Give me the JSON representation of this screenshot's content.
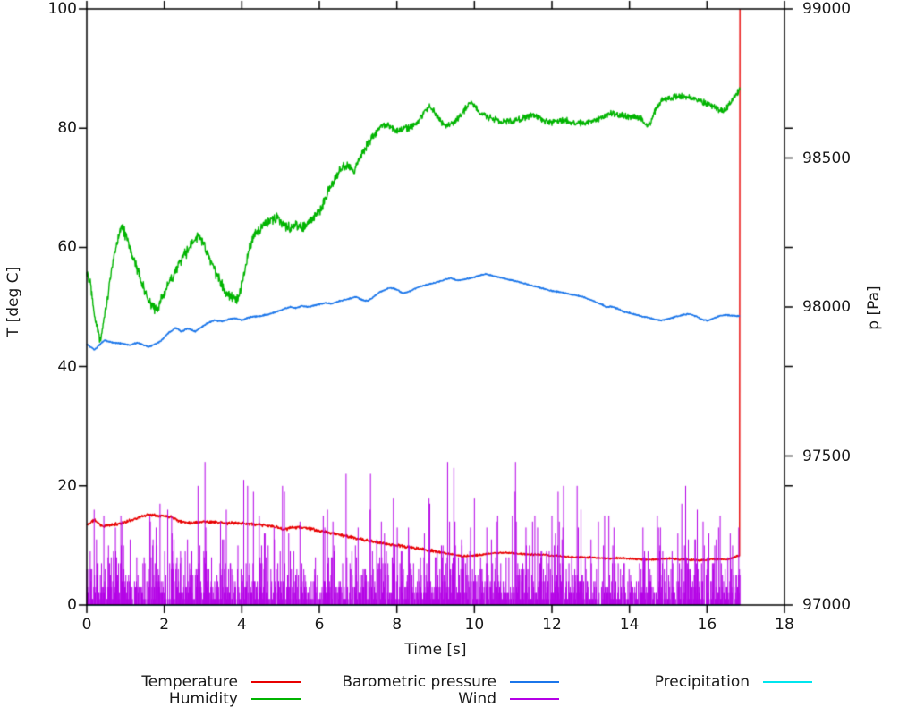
{
  "chart_data": {
    "type": "line",
    "title": "",
    "xlabel": "Time [s]",
    "ylabel_left": "T [deg C]",
    "ylabel_right": "p [Pa]",
    "x_range": [
      0,
      18
    ],
    "x_ticks": [
      0,
      2,
      4,
      6,
      8,
      10,
      12,
      14,
      16,
      18
    ],
    "y_left_range": [
      0,
      100
    ],
    "y_left_ticks": [
      0,
      20,
      40,
      60,
      80,
      100
    ],
    "y_right_range": [
      97000,
      99000
    ],
    "y_right_ticks": [
      97000,
      97500,
      98000,
      98500,
      99000
    ],
    "grid": false,
    "legend_position": "bottom",
    "frame_color": "#000000",
    "end_time": 16.85,
    "sample_dt": 0.01,
    "series": [
      {
        "name": "Temperature",
        "color": "#e80000",
        "axis": "left",
        "style": "line",
        "noise_zones": [
          [
            9,
            0.3
          ],
          [
            99,
            0.2
          ]
        ],
        "keypoints": [
          [
            0,
            13.4
          ],
          [
            0.2,
            14.3
          ],
          [
            0.4,
            13.2
          ],
          [
            0.7,
            13.5
          ],
          [
            1.0,
            13.9
          ],
          [
            1.3,
            14.6
          ],
          [
            1.6,
            15.2
          ],
          [
            1.9,
            15.0
          ],
          [
            2.2,
            14.8
          ],
          [
            2.4,
            14.0
          ],
          [
            2.7,
            13.8
          ],
          [
            3.0,
            14.0
          ],
          [
            3.3,
            13.9
          ],
          [
            3.6,
            13.7
          ],
          [
            3.9,
            13.8
          ],
          [
            4.2,
            13.6
          ],
          [
            4.5,
            13.4
          ],
          [
            4.8,
            13.2
          ],
          [
            5.1,
            12.7
          ],
          [
            5.4,
            13.1
          ],
          [
            5.7,
            12.9
          ],
          [
            6.0,
            12.4
          ],
          [
            6.3,
            12.1
          ],
          [
            6.6,
            11.7
          ],
          [
            7.0,
            11.1
          ],
          [
            7.4,
            10.6
          ],
          [
            7.8,
            10.2
          ],
          [
            8.2,
            9.8
          ],
          [
            8.6,
            9.4
          ],
          [
            9.0,
            9.0
          ],
          [
            9.4,
            8.5
          ],
          [
            9.7,
            8.2
          ],
          [
            10.0,
            8.3
          ],
          [
            10.4,
            8.6
          ],
          [
            10.7,
            8.8
          ],
          [
            11.0,
            8.7
          ],
          [
            11.4,
            8.5
          ],
          [
            11.8,
            8.4
          ],
          [
            12.2,
            8.2
          ],
          [
            12.6,
            8.0
          ],
          [
            13.0,
            8.0
          ],
          [
            13.4,
            7.8
          ],
          [
            13.8,
            7.9
          ],
          [
            14.2,
            7.7
          ],
          [
            14.6,
            7.6
          ],
          [
            15.0,
            7.8
          ],
          [
            15.4,
            7.6
          ],
          [
            15.8,
            7.5
          ],
          [
            16.2,
            7.7
          ],
          [
            16.5,
            7.6
          ],
          [
            16.78,
            8.2
          ],
          [
            16.84,
            8.3
          ],
          [
            16.85,
            100
          ]
        ]
      },
      {
        "name": "Humidity",
        "color": "#00b400",
        "axis": "left",
        "style": "line",
        "noise_zones": [
          [
            6.5,
            1.1
          ],
          [
            7.5,
            0.9
          ],
          [
            99,
            0.65
          ]
        ],
        "keypoints": [
          [
            0,
            56
          ],
          [
            0.1,
            54
          ],
          [
            0.22,
            48
          ],
          [
            0.35,
            44.5
          ],
          [
            0.5,
            50
          ],
          [
            0.65,
            56.5
          ],
          [
            0.8,
            61.5
          ],
          [
            0.9,
            64
          ],
          [
            1.0,
            62
          ],
          [
            1.1,
            60
          ],
          [
            1.25,
            57.5
          ],
          [
            1.4,
            54.5
          ],
          [
            1.55,
            51.5
          ],
          [
            1.7,
            50
          ],
          [
            1.85,
            49.8
          ],
          [
            2.0,
            52.5
          ],
          [
            2.2,
            55
          ],
          [
            2.4,
            57.5
          ],
          [
            2.6,
            59.5
          ],
          [
            2.75,
            61
          ],
          [
            2.9,
            62
          ],
          [
            3.05,
            60
          ],
          [
            3.2,
            57.5
          ],
          [
            3.35,
            55.5
          ],
          [
            3.55,
            53
          ],
          [
            3.75,
            51.5
          ],
          [
            3.9,
            51
          ],
          [
            4.05,
            55
          ],
          [
            4.2,
            60
          ],
          [
            4.35,
            62.5
          ],
          [
            4.55,
            63.5
          ],
          [
            4.75,
            64.5
          ],
          [
            4.95,
            65
          ],
          [
            5.1,
            64
          ],
          [
            5.25,
            63.2
          ],
          [
            5.4,
            64
          ],
          [
            5.55,
            63.2
          ],
          [
            5.7,
            64
          ],
          [
            5.85,
            64.8
          ],
          [
            6.0,
            66
          ],
          [
            6.2,
            69
          ],
          [
            6.4,
            71.5
          ],
          [
            6.6,
            73.5
          ],
          [
            6.75,
            73.8
          ],
          [
            6.9,
            72.8
          ],
          [
            7.05,
            75
          ],
          [
            7.2,
            77
          ],
          [
            7.4,
            78.8
          ],
          [
            7.6,
            80.3
          ],
          [
            7.8,
            80.5
          ],
          [
            7.95,
            79.5
          ],
          [
            8.1,
            79.8
          ],
          [
            8.3,
            80
          ],
          [
            8.5,
            80.8
          ],
          [
            8.7,
            82.5
          ],
          [
            8.85,
            83.7
          ],
          [
            9.0,
            82.3
          ],
          [
            9.15,
            81
          ],
          [
            9.3,
            80.3
          ],
          [
            9.5,
            81.2
          ],
          [
            9.7,
            82.5
          ],
          [
            9.88,
            84.5
          ],
          [
            10.0,
            83.8
          ],
          [
            10.15,
            82.5
          ],
          [
            10.3,
            82
          ],
          [
            10.5,
            81.6
          ],
          [
            10.7,
            81
          ],
          [
            10.9,
            81.2
          ],
          [
            11.1,
            81.4
          ],
          [
            11.3,
            81.8
          ],
          [
            11.5,
            82.2
          ],
          [
            11.7,
            81.5
          ],
          [
            11.9,
            81
          ],
          [
            12.1,
            81.2
          ],
          [
            12.3,
            81.4
          ],
          [
            12.5,
            81
          ],
          [
            12.7,
            80.8
          ],
          [
            12.9,
            81
          ],
          [
            13.1,
            81.3
          ],
          [
            13.3,
            81.8
          ],
          [
            13.5,
            82.5
          ],
          [
            13.7,
            82.2
          ],
          [
            13.9,
            82
          ],
          [
            14.1,
            82
          ],
          [
            14.3,
            81.6
          ],
          [
            14.45,
            80.3
          ],
          [
            14.55,
            81
          ],
          [
            14.65,
            82.8
          ],
          [
            14.85,
            84.8
          ],
          [
            15.0,
            85
          ],
          [
            15.2,
            85.3
          ],
          [
            15.4,
            85.3
          ],
          [
            15.6,
            85.1
          ],
          [
            15.8,
            84.7
          ],
          [
            16.0,
            84.2
          ],
          [
            16.15,
            83.7
          ],
          [
            16.3,
            83.2
          ],
          [
            16.42,
            82.7
          ],
          [
            16.55,
            83.8
          ],
          [
            16.7,
            85.3
          ],
          [
            16.85,
            86.4
          ]
        ]
      },
      {
        "name": "Barometric pressure",
        "color": "#1b76ea",
        "axis": "right",
        "style": "line",
        "noise_zones": [
          [
            99,
            2.5
          ]
        ],
        "keypoints": [
          [
            0,
            97875
          ],
          [
            0.2,
            97856
          ],
          [
            0.45,
            97888
          ],
          [
            0.7,
            97880
          ],
          [
            0.9,
            97878
          ],
          [
            1.1,
            97872
          ],
          [
            1.3,
            97880
          ],
          [
            1.6,
            97866
          ],
          [
            1.9,
            97884
          ],
          [
            2.1,
            97912
          ],
          [
            2.3,
            97930
          ],
          [
            2.45,
            97917
          ],
          [
            2.6,
            97928
          ],
          [
            2.8,
            97918
          ],
          [
            3.1,
            97945
          ],
          [
            3.3,
            97955
          ],
          [
            3.5,
            97952
          ],
          [
            3.7,
            97960
          ],
          [
            3.85,
            97962
          ],
          [
            4.0,
            97956
          ],
          [
            4.2,
            97966
          ],
          [
            4.5,
            97970
          ],
          [
            4.7,
            97976
          ],
          [
            4.9,
            97984
          ],
          [
            5.1,
            97994
          ],
          [
            5.25,
            98000
          ],
          [
            5.4,
            97996
          ],
          [
            5.55,
            98004
          ],
          [
            5.7,
            98000
          ],
          [
            6.0,
            98009
          ],
          [
            6.15,
            98014
          ],
          [
            6.3,
            98011
          ],
          [
            6.5,
            98019
          ],
          [
            6.8,
            98029
          ],
          [
            6.95,
            98034
          ],
          [
            7.1,
            98024
          ],
          [
            7.25,
            98020
          ],
          [
            7.55,
            98049
          ],
          [
            7.7,
            98059
          ],
          [
            7.85,
            98064
          ],
          [
            8.0,
            98059
          ],
          [
            8.15,
            98046
          ],
          [
            8.3,
            98051
          ],
          [
            8.6,
            98069
          ],
          [
            8.8,
            98076
          ],
          [
            9.1,
            98086
          ],
          [
            9.25,
            98092
          ],
          [
            9.4,
            98097
          ],
          [
            9.55,
            98089
          ],
          [
            9.7,
            98091
          ],
          [
            10.0,
            98100
          ],
          [
            10.15,
            98107
          ],
          [
            10.3,
            98111
          ],
          [
            10.5,
            98104
          ],
          [
            10.8,
            98094
          ],
          [
            11.1,
            98086
          ],
          [
            11.4,
            98075
          ],
          [
            11.7,
            98064
          ],
          [
            12.0,
            98054
          ],
          [
            12.3,
            98048
          ],
          [
            12.6,
            98040
          ],
          [
            12.8,
            98034
          ],
          [
            13.1,
            98019
          ],
          [
            13.25,
            98011
          ],
          [
            13.4,
            98000
          ],
          [
            13.55,
            98001
          ],
          [
            13.7,
            97994
          ],
          [
            13.85,
            97984
          ],
          [
            14.0,
            97980
          ],
          [
            14.3,
            97969
          ],
          [
            14.5,
            97964
          ],
          [
            14.65,
            97959
          ],
          [
            14.8,
            97954
          ],
          [
            15.1,
            97964
          ],
          [
            15.25,
            97969
          ],
          [
            15.4,
            97974
          ],
          [
            15.55,
            97977
          ],
          [
            15.7,
            97970
          ],
          [
            15.85,
            97959
          ],
          [
            16.0,
            97955
          ],
          [
            16.15,
            97960
          ],
          [
            16.3,
            97969
          ],
          [
            16.45,
            97973
          ],
          [
            16.6,
            97972
          ],
          [
            16.85,
            97969
          ]
        ]
      },
      {
        "name": "Wind",
        "color": "#b400e6",
        "axis": "left",
        "style": "impulse",
        "impulse_model": {
          "p_zero": 0.08,
          "mean": 3.3,
          "max": 24,
          "seed": 1337,
          "level_keypoints": [
            [
              0,
              1.35
            ],
            [
              2,
              1.4
            ],
            [
              4,
              1.35
            ],
            [
              6,
              1.15
            ],
            [
              8,
              1.2
            ],
            [
              10,
              1.3
            ],
            [
              12,
              1.2
            ],
            [
              14,
              1.05
            ],
            [
              16,
              1.2
            ],
            [
              16.85,
              1.1
            ]
          ]
        },
        "notable_spikes": [
          [
            3.05,
            24
          ],
          [
            3.6,
            16
          ],
          [
            4.05,
            21
          ],
          [
            4.15,
            20
          ],
          [
            4.3,
            19
          ],
          [
            4.45,
            15
          ],
          [
            5.05,
            20
          ],
          [
            5.1,
            19
          ],
          [
            5.5,
            14
          ],
          [
            6.1,
            15
          ],
          [
            7.0,
            13
          ],
          [
            8.3,
            13
          ],
          [
            8.85,
            17
          ],
          [
            9.5,
            14
          ],
          [
            10.0,
            18
          ],
          [
            10.6,
            15
          ],
          [
            11.05,
            19
          ],
          [
            11.5,
            14
          ],
          [
            12.0,
            15
          ],
          [
            12.3,
            20
          ],
          [
            12.65,
            20
          ],
          [
            12.75,
            16
          ],
          [
            13.2,
            14
          ],
          [
            13.6,
            13
          ],
          [
            14.35,
            13
          ],
          [
            15.35,
            17
          ],
          [
            15.45,
            20
          ],
          [
            15.9,
            14
          ],
          [
            16.3,
            13
          ],
          [
            16.6,
            12
          ],
          [
            16.82,
            13
          ]
        ]
      },
      {
        "name": "Precipitation",
        "color": "#00e5ee",
        "axis": "left",
        "style": "line",
        "noise_zones": [
          [
            99,
            0
          ]
        ],
        "keypoints": [
          [
            0,
            0
          ],
          [
            16.85,
            0
          ]
        ]
      }
    ]
  }
}
